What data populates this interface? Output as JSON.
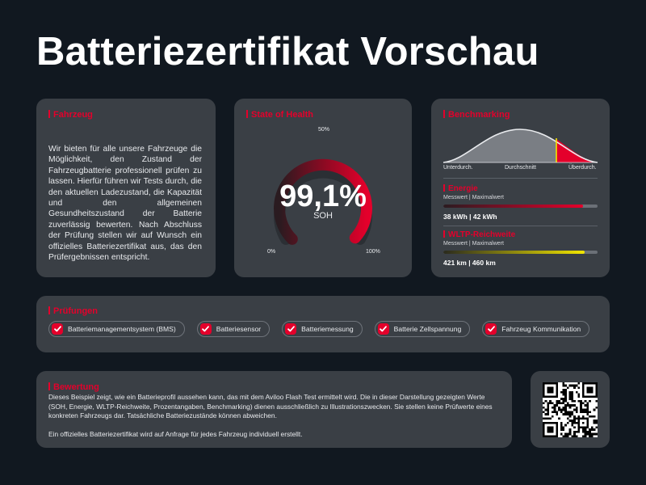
{
  "page": {
    "title": "Batteriezertifikat Vorschau"
  },
  "vehicle": {
    "title": "Fahrzeug",
    "text": "Wir bieten für alle unsere Fahrzeuge die Möglichkeit, den Zustand der Fahrzeugbatterie professionell prüfen zu lassen. Hierfür führen wir Tests durch, die den aktuellen Ladezustand, die Kapazität und den allgemeinen Gesundheitszustand der Batterie zuverlässig bewerten. Nach Abschluss der Prüfung stellen wir auf Wunsch ein offizielles Batteriezertifikat aus, das den Prüfergebnissen entspricht."
  },
  "soh": {
    "title": "State of Health",
    "value": "99,1%",
    "label": "SOH",
    "percent": 99.1,
    "tick_min": "0%",
    "tick_mid": "50%",
    "tick_max": "100%"
  },
  "benchmarking": {
    "title": "Benchmarking",
    "label_low": "Unterdurch.",
    "label_mid": "Durchschnitt",
    "label_high": "Überdurch.",
    "energy": {
      "title": "Energie",
      "subtitle": "Messwert | Maximalwert",
      "value": "38 kWh | 42 kWh",
      "fraction": 0.905
    },
    "range": {
      "title": "WLTP-Reichweite",
      "subtitle": "Messwert | Maximalwert",
      "value": "421 km | 460 km",
      "fraction": 0.915
    }
  },
  "tests": {
    "title": "Prüfungen",
    "items": [
      "Batteriemanagementsystem (BMS)",
      "Batteriesensor",
      "Batteriemessung",
      "Batterie Zellspannung",
      "Fahrzeug Kommunikation"
    ]
  },
  "evaluation": {
    "title": "Bewertung",
    "text": "Dieses Beispiel zeigt, wie ein Batterieprofil aussehen kann, das mit dem Aviloo Flash Test ermittelt wird. Die in dieser Darstellung gezeigten Werte (SOH, Energie, WLTP-Reichweite, Prozentangaben, Benchmarking) dienen ausschließlich zu Illustrationszwecken. Sie stellen keine Prüfwerte eines konkreten Fahrzeugs dar. Tatsächliche Batteriezustände können abweichen.\n\nEin offizielles Batteriezertifikat wird auf Anfrage für jedes Fahrzeug individuell erstellt."
  },
  "colors": {
    "background": "#111820",
    "card": "#3a3f45",
    "accent": "#e4002b",
    "highlight": "#f2e600"
  },
  "icons": {
    "check": "check-icon",
    "qr": "qr-code-icon"
  }
}
